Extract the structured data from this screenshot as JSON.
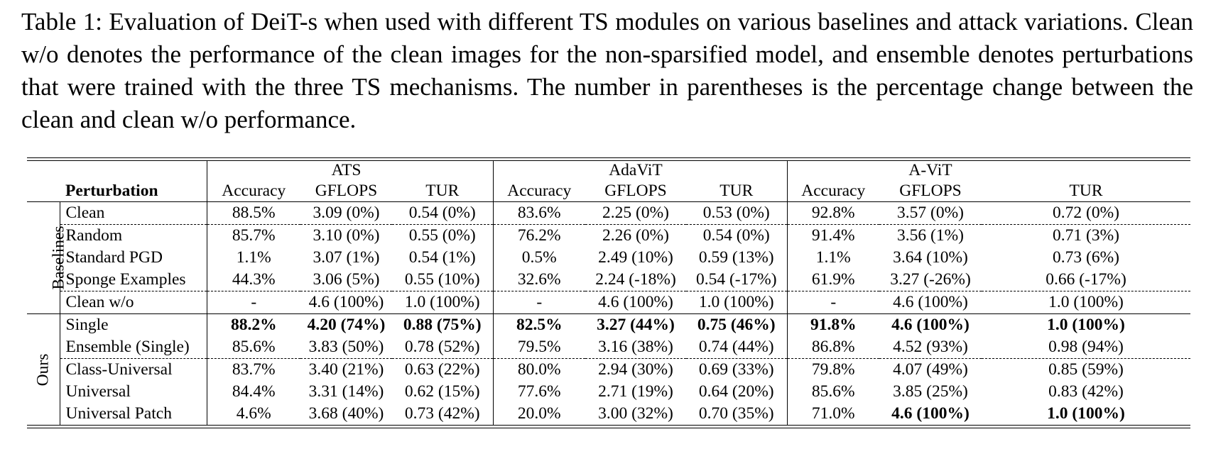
{
  "caption": "Table 1: Evaluation of DeiT-s when used with different TS modules on various baselines and attack variations. Clean w/o denotes the performance of the clean images for the non-sparsified model, and ensemble denotes perturbations that were trained with the three TS mechanisms. The number in parentheses is the percentage change between the clean and clean w/o performance.",
  "header": {
    "perturbation": "Perturbation",
    "groups": [
      "ATS",
      "AdaViT",
      "A-ViT"
    ],
    "metrics": [
      "Accuracy",
      "GFLOPS",
      "TUR"
    ]
  },
  "sections": [
    {
      "label": "Baselines",
      "rows": [
        {
          "name": "Clean",
          "cells": [
            "88.5%",
            "3.09 (0%)",
            "0.54 (0%)",
            "83.6%",
            "2.25 (0%)",
            "0.53 (0%)",
            "92.8%",
            "3.57 (0%)",
            "0.72 (0%)"
          ]
        },
        {
          "name": "Random",
          "cells": [
            "85.7%",
            "3.10 (0%)",
            "0.55 (0%)",
            "76.2%",
            "2.26 (0%)",
            "0.54 (0%)",
            "91.4%",
            "3.56 (1%)",
            "0.71 (3%)"
          ]
        },
        {
          "name": "Standard PGD",
          "cells": [
            "1.1%",
            "3.07 (1%)",
            "0.54 (1%)",
            "0.5%",
            "2.49 (10%)",
            "0.59 (13%)",
            "1.1%",
            "3.64 (10%)",
            "0.73 (6%)"
          ]
        },
        {
          "name": "Sponge Examples",
          "cells": [
            "44.3%",
            "3.06 (5%)",
            "0.55 (10%)",
            "32.6%",
            "2.24 (-18%)",
            "0.54 (-17%)",
            "61.9%",
            "3.27 (-26%)",
            "0.66 (-17%)"
          ]
        },
        {
          "name": "Clean w/o",
          "cells": [
            "-",
            "4.6 (100%)",
            "1.0 (100%)",
            "-",
            "4.6 (100%)",
            "1.0 (100%)",
            "-",
            "4.6 (100%)",
            "1.0 (100%)"
          ]
        }
      ]
    },
    {
      "label": "Ours",
      "rows": [
        {
          "name": "Single",
          "cells": [
            "88.2%",
            "4.20 (74%)",
            "0.88 (75%)",
            "82.5%",
            "3.27 (44%)",
            "0.75 (46%)",
            "91.8%",
            "4.6 (100%)",
            "1.0 (100%)"
          ]
        },
        {
          "name": "Ensemble (Single)",
          "cells": [
            "85.6%",
            "3.83 (50%)",
            "0.78 (52%)",
            "79.5%",
            "3.16 (38%)",
            "0.74 (44%)",
            "86.8%",
            "4.52 (93%)",
            "0.98 (94%)"
          ]
        },
        {
          "name": "Class-Universal",
          "cells": [
            "83.7%",
            "3.40 (21%)",
            "0.63 (22%)",
            "80.0%",
            "2.94 (30%)",
            "0.69 (33%)",
            "79.8%",
            "4.07 (49%)",
            "0.85 (59%)"
          ]
        },
        {
          "name": "Universal",
          "cells": [
            "84.4%",
            "3.31 (14%)",
            "0.62 (15%)",
            "77.6%",
            "2.71 (19%)",
            "0.64 (20%)",
            "85.6%",
            "3.85 (25%)",
            "0.83 (42%)"
          ]
        },
        {
          "name": "Universal Patch",
          "cells": [
            "4.6%",
            "3.68 (40%)",
            "0.73 (42%)",
            "20.0%",
            "3.00 (32%)",
            "0.70 (35%)",
            "71.0%",
            "4.6 (100%)",
            "1.0 (100%)"
          ]
        }
      ]
    }
  ]
}
